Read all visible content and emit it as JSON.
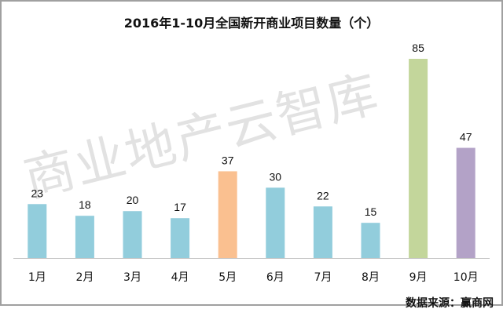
{
  "chart_data": {
    "type": "bar",
    "title": "2016年1-10月全国新开商业项目数量（个）",
    "categories": [
      "1月",
      "2月",
      "3月",
      "4月",
      "5月",
      "6月",
      "7月",
      "8月",
      "9月",
      "10月"
    ],
    "values": [
      23,
      18,
      20,
      17,
      37,
      30,
      22,
      15,
      85,
      47
    ],
    "colors": [
      "#92cddc",
      "#92cddc",
      "#92cddc",
      "#92cddc",
      "#fac090",
      "#92cddc",
      "#92cddc",
      "#92cddc",
      "#c3d69b",
      "#b3a2c7"
    ],
    "ylim": [
      0,
      85
    ],
    "grid": false,
    "data_labels": true
  },
  "watermark": "商业地产云智库",
  "source": "数据来源：赢商网"
}
